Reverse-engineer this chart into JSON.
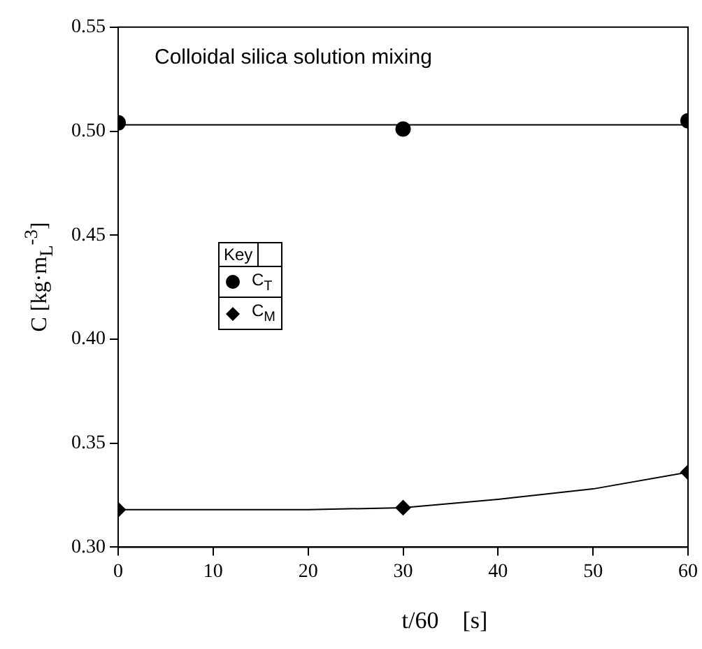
{
  "chart_data": {
    "type": "scatter",
    "xlabel": "t/60    [s]",
    "ylabel": "C    [kg·m$_{L}$$^{-3}$]",
    "legend_title": "Key",
    "annotations": [
      "Colloidal silica solution mixing"
    ],
    "xlim": [
      0,
      60
    ],
    "xticks": [
      0,
      10,
      20,
      30,
      40,
      50,
      60
    ],
    "ylim": [
      0.3,
      0.55
    ],
    "yticks": [
      {
        "value": 0.3,
        "label": "0.30"
      },
      {
        "value": 0.35,
        "label": "0.35"
      },
      {
        "value": 0.4,
        "label": "0.40"
      },
      {
        "value": 0.45,
        "label": "0.45"
      },
      {
        "value": 0.5,
        "label": "0.50"
      },
      {
        "value": 0.55,
        "label": "0.55"
      }
    ],
    "grid": false,
    "legend": "left",
    "series": [
      {
        "name": "C$_{T}$",
        "type": "scatter",
        "marker": "circle",
        "color": "#000000",
        "x": [
          0,
          30,
          60
        ],
        "values": [
          0.504,
          0.501,
          0.505
        ]
      },
      {
        "type": "line",
        "marker": "none",
        "line_style": "solid",
        "color": "#000000",
        "x": [
          0,
          60
        ],
        "values": [
          0.503,
          0.503
        ]
      },
      {
        "name": "C$_{M}$",
        "type": "scatter",
        "marker": "diamond",
        "color": "#000000",
        "x": [
          0,
          30,
          60
        ],
        "values": [
          0.318,
          0.319,
          0.336
        ]
      },
      {
        "type": "line",
        "marker": "none",
        "line_style": "solid",
        "color": "#000000",
        "x": [
          0,
          20,
          30,
          40,
          50,
          60
        ],
        "values": [
          0.318,
          0.318,
          0.319,
          0.323,
          0.328,
          0.336
        ]
      }
    ]
  }
}
